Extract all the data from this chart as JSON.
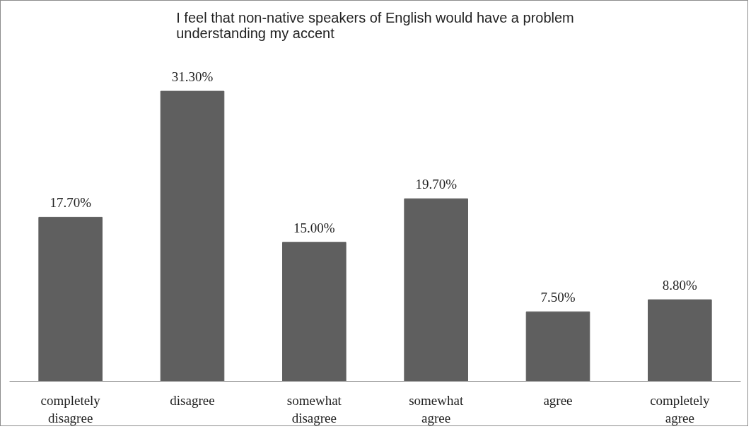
{
  "chart_data": {
    "type": "bar",
    "title": "I feel that non-native speakers of English would have a problem understanding my accent",
    "categories": [
      "completely disagree",
      "disagree",
      "somewhat disagree",
      "somewhat agree",
      "agree",
      "completely agree"
    ],
    "values": [
      17.7,
      31.3,
      15.0,
      19.7,
      7.5,
      8.8
    ],
    "value_labels": [
      "17.70%",
      "31.30%",
      "15.00%",
      "19.70%",
      "7.50%",
      "8.80%"
    ],
    "color": "#5f5f5f",
    "grid": false
  }
}
